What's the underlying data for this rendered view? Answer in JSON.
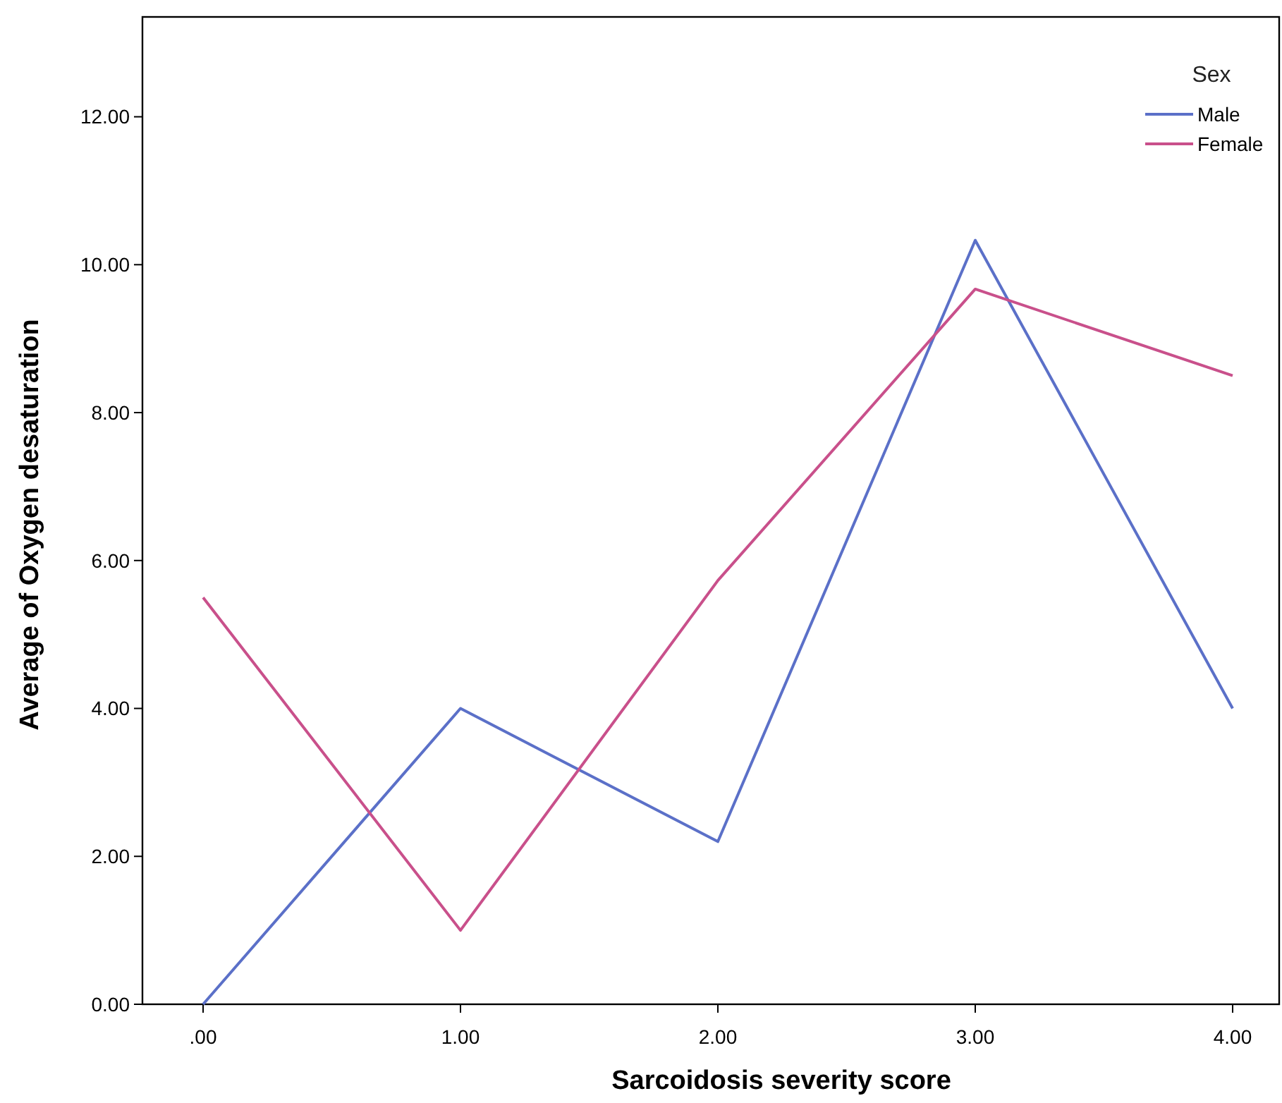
{
  "chart_data": {
    "type": "line",
    "xlabel": "Sarcoidosis severity score",
    "ylabel": "Average of Oxygen desaturation",
    "legend_title": "Sex",
    "legend": "top right",
    "grid": false,
    "categories": [
      ".00",
      "1.00",
      "2.00",
      "3.00",
      "4.00"
    ],
    "ylim": [
      0,
      13.35
    ],
    "yticks": [
      {
        "value": 0,
        "label": "0.00"
      },
      {
        "value": 2,
        "label": "2.00"
      },
      {
        "value": 4,
        "label": "4.00"
      },
      {
        "value": 6,
        "label": "6.00"
      },
      {
        "value": 8,
        "label": "8.00"
      },
      {
        "value": 10,
        "label": "10.00"
      },
      {
        "value": 12,
        "label": "12.00"
      }
    ],
    "series": [
      {
        "name": "Male",
        "color": "#5b70c8",
        "values": [
          0,
          4.0,
          2.2,
          10.33,
          4.0
        ]
      },
      {
        "name": "Female",
        "color": "#c9508b",
        "values": [
          5.5,
          1.0,
          5.73,
          9.67,
          8.5
        ]
      }
    ]
  }
}
